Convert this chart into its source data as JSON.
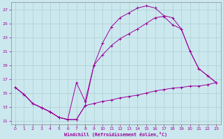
{
  "xlabel": "Windchill (Refroidissement éolien,°C)",
  "background_color": "#cce8ef",
  "line_color": "#990099",
  "xlim": [
    -0.5,
    23.5
  ],
  "ylim": [
    10.5,
    28.0
  ],
  "xticks": [
    0,
    1,
    2,
    3,
    4,
    5,
    6,
    7,
    8,
    9,
    10,
    11,
    12,
    13,
    14,
    15,
    16,
    17,
    18,
    19,
    20,
    21,
    22,
    23
  ],
  "yticks": [
    11,
    13,
    15,
    17,
    19,
    21,
    23,
    25,
    27
  ],
  "grid_color": "#aacfcf",
  "line1_x": [
    0,
    1,
    2,
    3,
    4,
    5,
    6,
    7,
    8,
    9,
    10,
    11,
    12,
    13,
    14,
    15,
    16,
    17,
    18,
    19,
    20,
    21,
    22,
    23
  ],
  "line1_y": [
    15.8,
    14.8,
    13.5,
    12.9,
    12.3,
    11.5,
    11.2,
    11.2,
    13.2,
    19.0,
    22.2,
    24.5,
    25.8,
    26.5,
    27.2,
    27.5,
    27.2,
    26.1,
    25.8,
    24.2,
    21.0,
    18.5,
    17.5,
    16.5
  ],
  "line2_x": [
    0,
    1,
    2,
    3,
    4,
    5,
    6,
    7,
    8,
    9,
    10,
    11,
    12,
    13,
    14,
    15,
    16,
    17,
    18,
    19,
    20,
    21,
    22,
    23
  ],
  "line2_y": [
    15.8,
    14.8,
    13.5,
    12.9,
    12.3,
    11.5,
    11.2,
    16.5,
    13.8,
    19.0,
    20.5,
    21.8,
    22.8,
    23.5,
    24.2,
    25.0,
    25.8,
    26.0,
    24.8,
    24.2,
    21.0,
    18.5,
    17.5,
    16.5
  ],
  "line3_x": [
    0,
    1,
    2,
    3,
    4,
    5,
    6,
    7,
    8,
    9,
    10,
    11,
    12,
    13,
    14,
    15,
    16,
    17,
    18,
    19,
    20,
    21,
    22,
    23
  ],
  "line3_y": [
    15.8,
    14.8,
    13.5,
    12.9,
    12.3,
    11.5,
    11.2,
    11.2,
    13.2,
    13.5,
    13.8,
    14.0,
    14.3,
    14.5,
    14.7,
    15.0,
    15.3,
    15.5,
    15.7,
    15.8,
    16.0,
    16.0,
    16.2,
    16.5
  ]
}
